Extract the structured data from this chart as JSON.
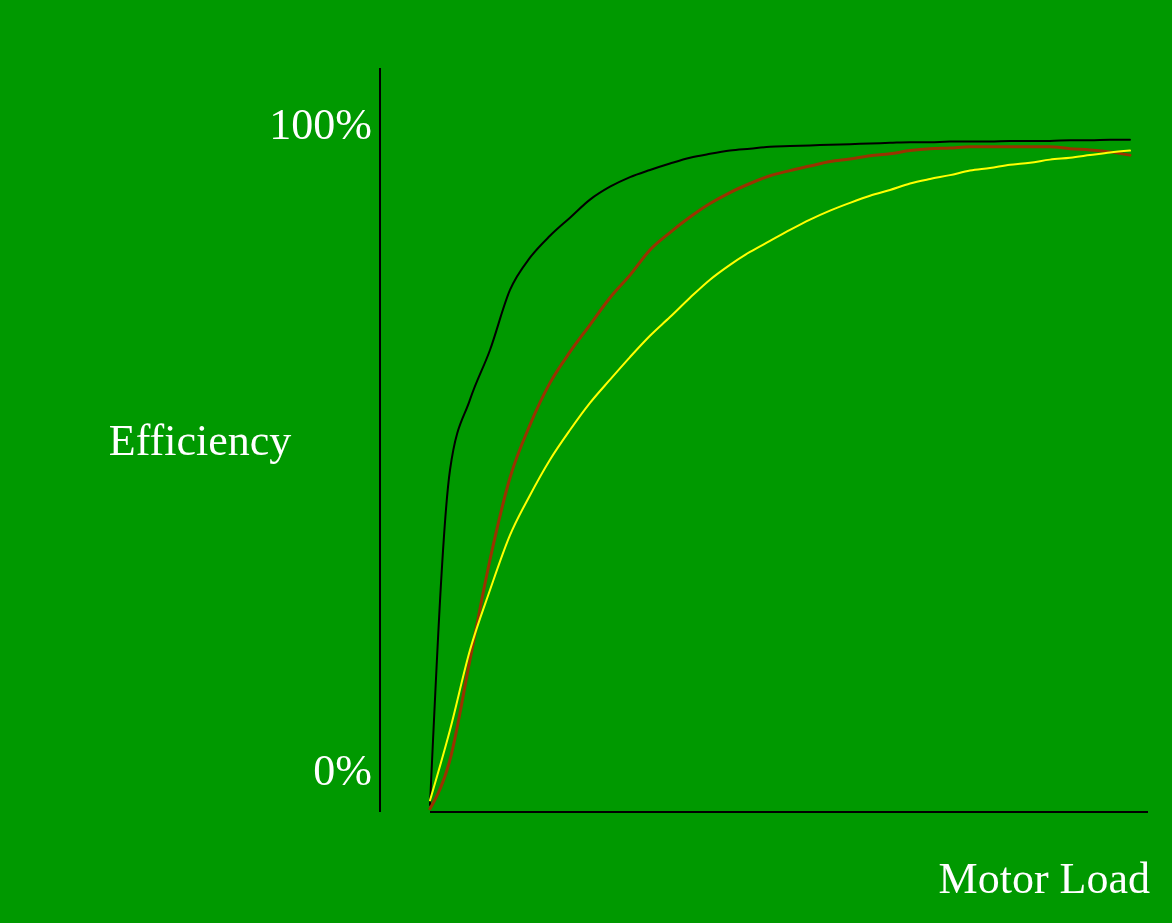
{
  "chart_data": {
    "type": "line",
    "xlabel": "Motor Load",
    "ylabel": "Efficiency",
    "relative": false,
    "categories": [
      null,
      null,
      null,
      null,
      null,
      null,
      null,
      null,
      null,
      null,
      null,
      null,
      null,
      null,
      null,
      null,
      null,
      null,
      null,
      null,
      null,
      null,
      null,
      null,
      null,
      null,
      null,
      null,
      null,
      null,
      null,
      null,
      null,
      null,
      null,
      null
    ],
    "ylim": [
      -6.5,
      108.8
    ],
    "yticks": [
      {
        "value": 0,
        "label": "0%"
      },
      {
        "value": 100,
        "label": "100%"
      }
    ],
    "series": [
      {
        "color": "#000000",
        "values": [
          -5.4,
          46.5,
          57.4,
          65.1,
          74.4,
          79.4,
          82.8,
          85.6,
          88.4,
          90.4,
          91.9,
          93.0,
          94.0,
          94.9,
          95.5,
          96.0,
          96.3,
          96.6,
          96.7,
          96.8,
          96.9,
          97.0,
          97.1,
          97.2,
          97.3,
          97.3,
          97.4,
          97.4,
          97.4,
          97.5,
          97.5,
          97.5,
          97.6,
          97.6,
          97.7,
          97.7
        ]
      },
      {
        "color": "#993300",
        "values": [
          -6,
          1.6,
          17.1,
          32.6,
          45.3,
          53.5,
          60.0,
          64.8,
          69.0,
          73.2,
          76.7,
          80.6,
          83.3,
          85.7,
          87.8,
          89.5,
          90.9,
          92.1,
          92.9,
          93.6,
          94.3,
          94.7,
          95.2,
          95.5,
          96.0,
          96.3,
          96.4,
          96.6,
          96.6,
          96.6,
          96.6,
          96.6,
          96.3,
          96.1,
          95.8,
          95.3
        ]
      },
      {
        "color": "#ffff00",
        "values": [
          -4.7,
          6.2,
          18.6,
          27.9,
          36.4,
          42.6,
          48.1,
          52.7,
          56.9,
          60.5,
          64.0,
          67.3,
          70.2,
          73.2,
          76.0,
          78.3,
          80.3,
          82.0,
          83.7,
          85.3,
          86.7,
          87.9,
          89.0,
          89.9,
          90.9,
          91.6,
          92.2,
          92.9,
          93.3,
          93.8,
          94.1,
          94.6,
          94.9,
          95.3,
          95.7,
          96.0
        ]
      }
    ]
  }
}
